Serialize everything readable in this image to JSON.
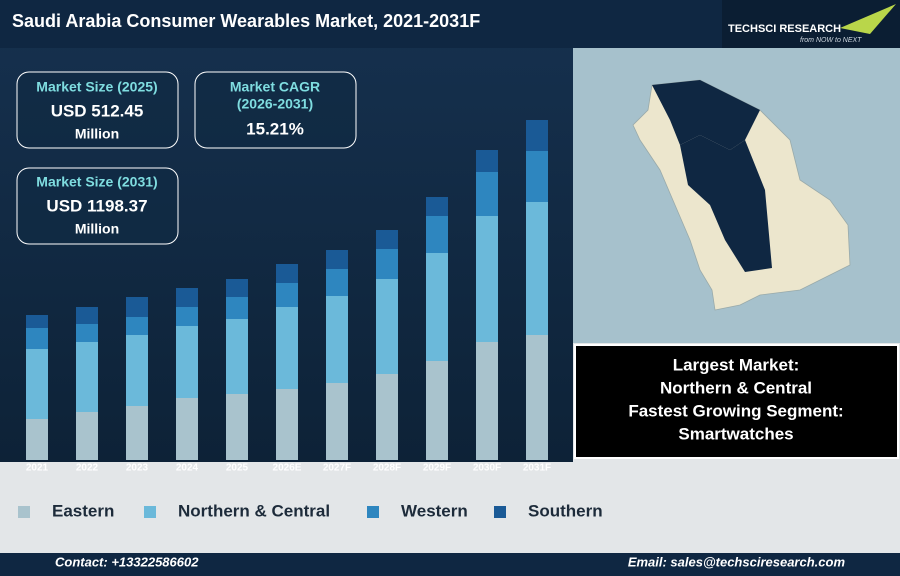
{
  "header": {
    "title": "Saudi Arabia Consumer Wearables Market, 2021-2031F",
    "logo": "TECHSCI RESEARCH",
    "tagline": "from NOW to NEXT"
  },
  "stats": [
    {
      "label": "Market Size (2025)",
      "value": "USD 512.45",
      "unit": "Million"
    },
    {
      "label": "Market CAGR",
      "sub": "(2026-2031)",
      "value": "15.21%"
    },
    {
      "label": "Market Size (2031)",
      "value": "USD 1198.37",
      "unit": "Million"
    }
  ],
  "info": [
    "Largest Market:",
    "Northern & Central",
    "Fastest Growing Segment:",
    "Smartwatches"
  ],
  "footer": {
    "contact": "Contact: +13322586602",
    "email": "Email: sales@techsciresearch.com"
  },
  "chart_data": {
    "type": "stacked_bar",
    "categories": [
      "2021",
      "2022",
      "2023",
      "2024",
      "2025",
      "2026E",
      "2027F",
      "2028F",
      "2029F",
      "2030F",
      "2031F"
    ],
    "series": [
      {
        "name": "Eastern",
        "color": "#a9c3cd",
        "values": [
          41,
          48,
          54,
          62,
          66,
          71,
          77,
          86,
          99,
          118,
          125
        ]
      },
      {
        "name": "Northern & Central",
        "color": "#6bb9da",
        "values": [
          70,
          70,
          71,
          72,
          75,
          82,
          87,
          95,
          108,
          126,
          133
        ]
      },
      {
        "name": "Western",
        "color": "#2e86bf",
        "values": [
          21,
          18,
          18,
          19,
          22,
          24,
          27,
          30,
          37,
          44,
          51
        ]
      },
      {
        "name": "Southern",
        "color": "#1a5a96",
        "values": [
          13,
          17,
          20,
          19,
          18,
          19,
          19,
          19,
          19,
          22,
          31
        ]
      }
    ],
    "ylim": [
      0,
      345
    ]
  }
}
